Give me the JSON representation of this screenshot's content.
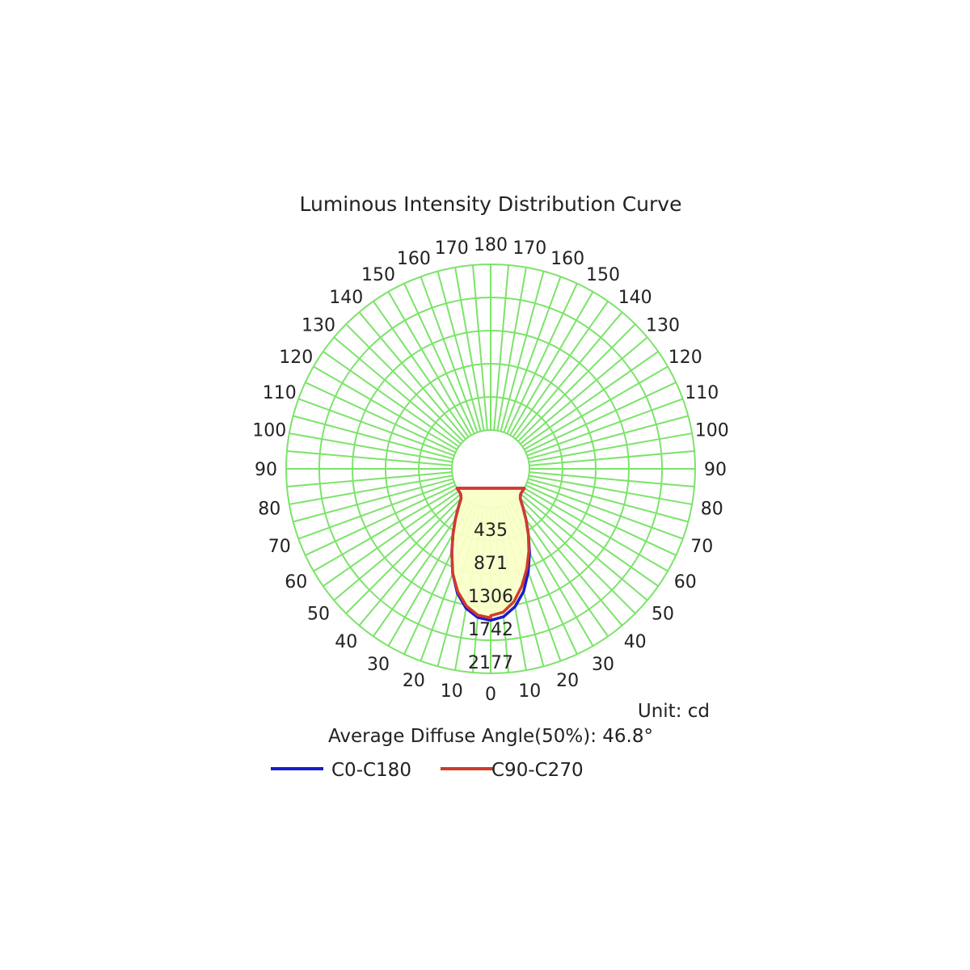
{
  "chart_data": {
    "type": "polar",
    "title": "Luminous Intensity Distribution Curve",
    "unit_label": "Unit: cd",
    "subtitle": "Average Diffuse Angle(50%): 46.8°",
    "radial_ticks": [
      "435",
      "871",
      "1306",
      "1742",
      "2177"
    ],
    "radial_tick_values": [
      435,
      871,
      1306,
      1742,
      2177
    ],
    "r_max": 2177,
    "angle_labels_left": [
      "0",
      "10",
      "20",
      "30",
      "40",
      "50",
      "60",
      "70",
      "80",
      "90",
      "100",
      "110",
      "120",
      "130",
      "140",
      "150",
      "160",
      "170",
      "180"
    ],
    "angle_labels_right": [
      "10",
      "20",
      "30",
      "40",
      "50",
      "60",
      "70",
      "80",
      "90",
      "100",
      "110",
      "120",
      "130",
      "140",
      "150",
      "160",
      "170"
    ],
    "grid": true,
    "legend_position": "bottom",
    "colors": {
      "grid": "#7ce36a",
      "fill": "#fbffc8",
      "c0": "#1a1ad0",
      "c90": "#d23a2a"
    },
    "series": [
      {
        "name": "C0-C180",
        "color": "#1a1ad0",
        "angles": [
          0,
          5,
          10,
          15,
          20,
          25,
          30,
          35,
          40,
          45,
          50,
          55,
          60
        ],
        "right": [
          1480,
          1440,
          1330,
          1160,
          935,
          700,
          480,
          300,
          150,
          40,
          5,
          0,
          0
        ],
        "left": [
          1480,
          1450,
          1350,
          1180,
          950,
          700,
          480,
          300,
          150,
          40,
          5,
          0,
          0
        ]
      },
      {
        "name": "C90-C270",
        "color": "#d23a2a",
        "angles": [
          0,
          5,
          10,
          15,
          20,
          25,
          30,
          35,
          40,
          45,
          50,
          55,
          60
        ],
        "right": [
          1420,
          1380,
          1260,
          1080,
          880,
          680,
          480,
          300,
          150,
          40,
          5,
          0,
          0
        ],
        "left": [
          1450,
          1420,
          1320,
          1160,
          950,
          700,
          480,
          300,
          150,
          40,
          5,
          0,
          0
        ]
      }
    ]
  }
}
